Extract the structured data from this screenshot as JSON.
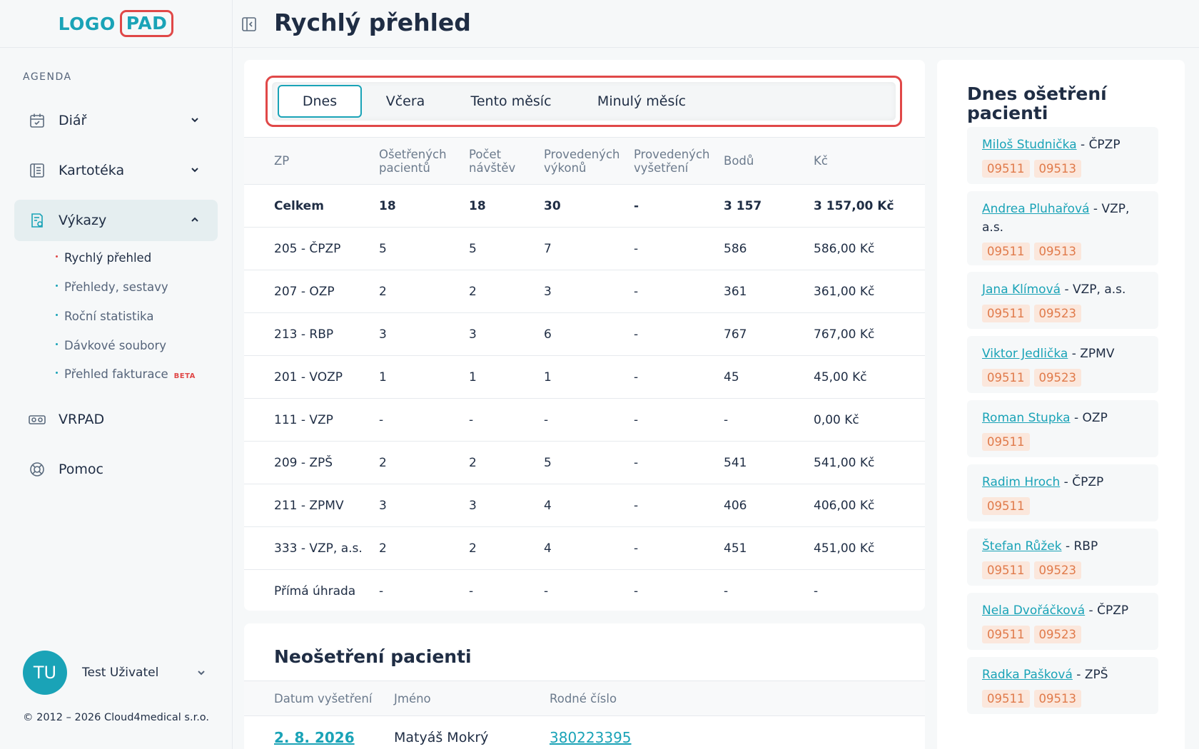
{
  "logo": {
    "part1": "LOGO",
    "part2": "PAD"
  },
  "sidebar": {
    "section_label": "AGENDA",
    "items": [
      {
        "label": "Diář",
        "icon": "calendar-icon"
      },
      {
        "label": "Kartotéka",
        "icon": "file-card-icon"
      },
      {
        "label": "Výkazy",
        "icon": "report-icon"
      },
      {
        "label": "VRPAD",
        "icon": "vr-headset-icon"
      },
      {
        "label": "Pomoc",
        "icon": "lifebuoy-icon"
      }
    ],
    "subitems": [
      {
        "label": "Rychlý přehled"
      },
      {
        "label": "Přehledy, sestavy"
      },
      {
        "label": "Roční statistika"
      },
      {
        "label": "Dávkové soubory"
      },
      {
        "label": "Přehled fakturace",
        "badge": "BETA"
      }
    ]
  },
  "user": {
    "initials": "TU",
    "name": "Test Uživatel"
  },
  "copyright": "© 2012 – 2026 Cloud4medical s.r.o.",
  "header": {
    "title": "Rychlý přehled"
  },
  "tabs": [
    "Dnes",
    "Včera",
    "Tento měsíc",
    "Minulý měsíc"
  ],
  "stats": {
    "columns": [
      "ZP",
      "Ošetřených pacientů",
      "Počet návštěv",
      "Provedených výkonů",
      "Provedených vyšetření",
      "Bodů",
      "Kč"
    ],
    "rows": [
      [
        "Celkem",
        "18",
        "18",
        "30",
        "-",
        "3 157",
        "3 157,00 Kč"
      ],
      [
        "205 - ČPZP",
        "5",
        "5",
        "7",
        "-",
        "586",
        "586,00 Kč"
      ],
      [
        "207 - OZP",
        "2",
        "2",
        "3",
        "-",
        "361",
        "361,00 Kč"
      ],
      [
        "213 - RBP",
        "3",
        "3",
        "6",
        "-",
        "767",
        "767,00 Kč"
      ],
      [
        "201 - VOZP",
        "1",
        "1",
        "1",
        "-",
        "45",
        "45,00 Kč"
      ],
      [
        "111 - VZP",
        "-",
        "-",
        "-",
        "-",
        "-",
        "0,00 Kč"
      ],
      [
        "209 - ZPŠ",
        "2",
        "2",
        "5",
        "-",
        "541",
        "541,00 Kč"
      ],
      [
        "211 - ZPMV",
        "3",
        "3",
        "4",
        "-",
        "406",
        "406,00 Kč"
      ],
      [
        "333 - VZP, a.s.",
        "2",
        "2",
        "4",
        "-",
        "451",
        "451,00 Kč"
      ],
      [
        "Přímá úhrada",
        "-",
        "-",
        "-",
        "-",
        "-",
        "-"
      ]
    ]
  },
  "untreated": {
    "title": "Neošetření pacienti",
    "columns": [
      "Datum vyšetření",
      "Jméno",
      "Rodné číslo"
    ],
    "rows": [
      [
        "2. 8. 2026",
        "Matyáš Mokrý",
        "380223395"
      ]
    ]
  },
  "treated_today": {
    "title": "Dnes ošetření pacienti",
    "patients": [
      {
        "name": "Miloš Studnička",
        "insurer": "ČPZP",
        "codes": [
          "09511",
          "09513"
        ]
      },
      {
        "name": "Andrea Pluhařová",
        "insurer": "VZP, a.s.",
        "codes": [
          "09511",
          "09513"
        ]
      },
      {
        "name": "Jana Klímová",
        "insurer": "VZP, a.s.",
        "codes": [
          "09511",
          "09523"
        ]
      },
      {
        "name": "Viktor Jedlička",
        "insurer": "ZPMV",
        "codes": [
          "09511",
          "09523"
        ]
      },
      {
        "name": "Roman Stupka",
        "insurer": "OZP",
        "codes": [
          "09511"
        ]
      },
      {
        "name": "Radim Hroch",
        "insurer": "ČPZP",
        "codes": [
          "09511"
        ]
      },
      {
        "name": "Štefan Růžek",
        "insurer": "RBP",
        "codes": [
          "09511",
          "09523"
        ]
      },
      {
        "name": "Nela Dvořáčková",
        "insurer": "ČPZP",
        "codes": [
          "09511",
          "09523"
        ]
      },
      {
        "name": "Radka Pašková",
        "insurer": "ZPŠ",
        "codes": [
          "09511",
          "09513"
        ]
      }
    ]
  },
  "colors": {
    "accent": "#1aa3b7",
    "highlight": "#e04848",
    "code_bg": "#fbe7dc",
    "code_text": "#e07a4a"
  }
}
